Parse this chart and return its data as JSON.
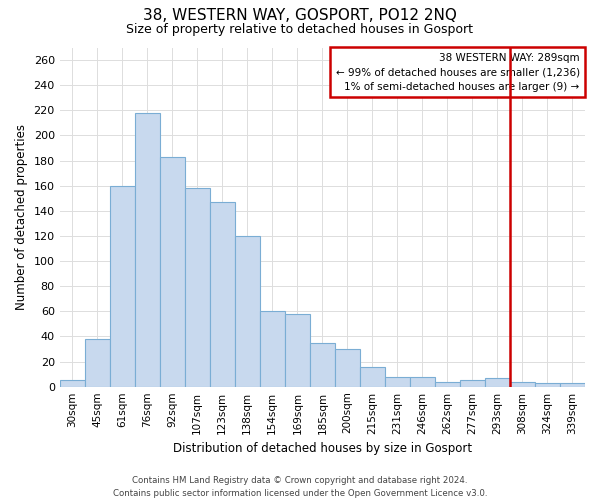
{
  "title": "38, WESTERN WAY, GOSPORT, PO12 2NQ",
  "subtitle": "Size of property relative to detached houses in Gosport",
  "xlabel": "Distribution of detached houses by size in Gosport",
  "ylabel": "Number of detached properties",
  "bar_labels": [
    "30sqm",
    "45sqm",
    "61sqm",
    "76sqm",
    "92sqm",
    "107sqm",
    "123sqm",
    "138sqm",
    "154sqm",
    "169sqm",
    "185sqm",
    "200sqm",
    "215sqm",
    "231sqm",
    "246sqm",
    "262sqm",
    "277sqm",
    "293sqm",
    "308sqm",
    "324sqm",
    "339sqm"
  ],
  "bar_values": [
    5,
    38,
    160,
    218,
    183,
    158,
    147,
    120,
    60,
    58,
    35,
    30,
    16,
    8,
    8,
    4,
    5,
    7,
    4,
    3,
    3
  ],
  "bar_color": "#c8d9ee",
  "bar_edge_color": "#7aadd4",
  "ylim": [
    0,
    270
  ],
  "yticks": [
    0,
    20,
    40,
    60,
    80,
    100,
    120,
    140,
    160,
    180,
    200,
    220,
    240,
    260
  ],
  "vline_color": "#cc0000",
  "annotation_title": "38 WESTERN WAY: 289sqm",
  "annotation_line1": "← 99% of detached houses are smaller (1,236)",
  "annotation_line2": "1% of semi-detached houses are larger (9) →",
  "footer_line1": "Contains HM Land Registry data © Crown copyright and database right 2024.",
  "footer_line2": "Contains public sector information licensed under the Open Government Licence v3.0.",
  "background_color": "#ffffff",
  "grid_color": "#dddddd"
}
